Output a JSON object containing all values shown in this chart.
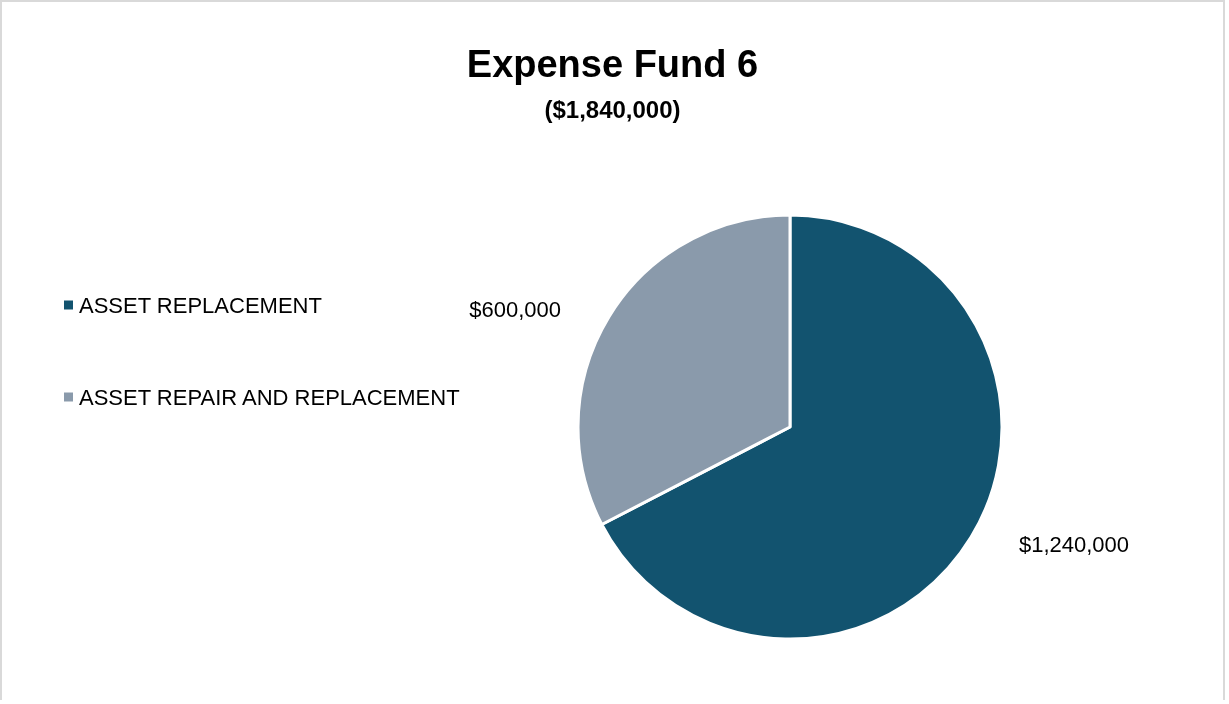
{
  "chart_data": {
    "type": "pie",
    "title": "Expense Fund 6",
    "subtitle": "($1,840,000)",
    "categories": [
      "ASSET REPLACEMENT",
      "ASSET REPAIR AND REPLACEMENT"
    ],
    "values": [
      1240000,
      600000
    ],
    "colors": [
      "#12536f",
      "#8a9aab"
    ],
    "value_labels": [
      "$1,240,000",
      "$600,000"
    ],
    "legend": "left"
  }
}
